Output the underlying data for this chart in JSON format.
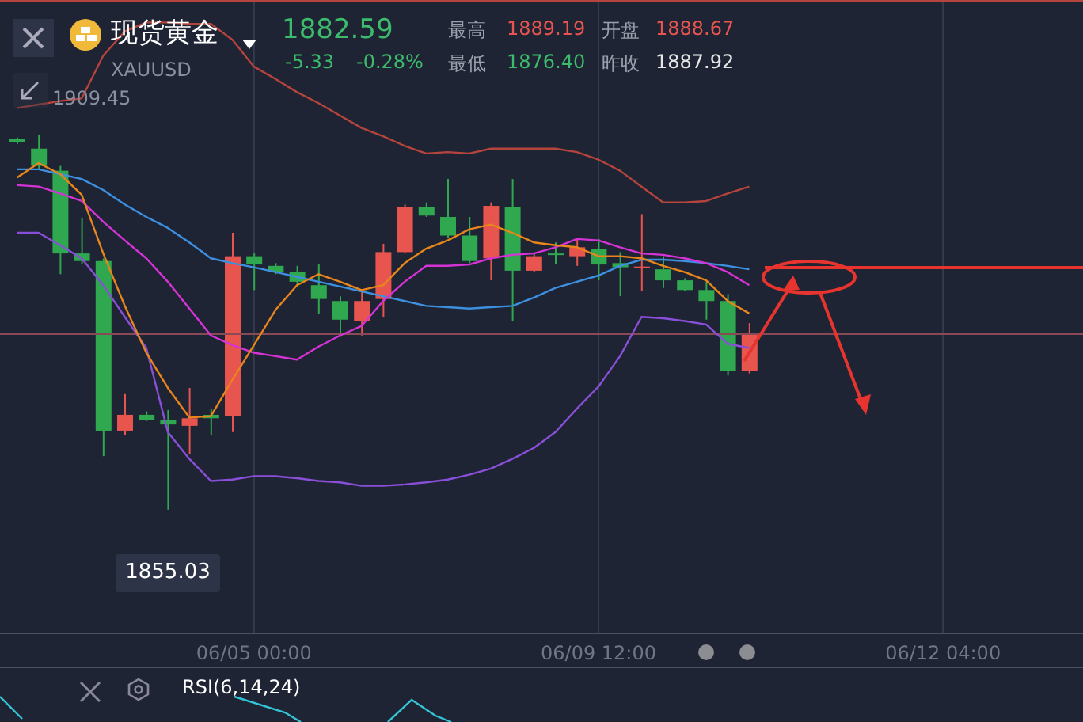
{
  "chart_data": {
    "type": "candlestick",
    "title": "现货黄金",
    "subtitle": "XAUUSD",
    "categories": [
      null,
      null,
      null,
      null,
      null,
      null,
      null,
      null,
      null,
      null,
      null,
      "06/05 00:00",
      null,
      null,
      null,
      null,
      null,
      null,
      null,
      null,
      null,
      null,
      null,
      null,
      null,
      null,
      null,
      "06/09 12:00",
      null,
      null,
      null,
      null,
      null,
      null,
      null,
      null,
      null,
      null,
      null,
      null,
      null,
      null,
      null,
      "06/12 04:00",
      null,
      null,
      null,
      null,
      null,
      null
    ],
    "ohlc": [
      [
        1908.8,
        1909.0,
        1908.1,
        1908.3
      ],
      [
        1907.4,
        1909.45,
        1904.4,
        1904.9
      ],
      [
        1904.2,
        1904.9,
        1889.2,
        1892.2
      ],
      [
        1892.2,
        1897.3,
        1890.6,
        1891.1
      ],
      [
        1891.1,
        1891.5,
        1862.8,
        1866.5
      ],
      [
        1866.5,
        1871.8,
        1865.8,
        1868.8
      ],
      [
        1868.8,
        1869.3,
        1867.9,
        1868.1
      ],
      [
        1868.1,
        1869.5,
        1855.03,
        1867.4
      ],
      [
        1867.2,
        1872.7,
        1863.1,
        1868.3
      ],
      [
        1868.8,
        1869.7,
        1865.8,
        1868.3
      ],
      [
        1868.6,
        1895.2,
        1866.3,
        1891.8
      ],
      [
        1891.8,
        1892.2,
        1886.9,
        1890.6
      ],
      [
        1890.4,
        1890.8,
        1889.2,
        1889.5
      ],
      [
        1889.5,
        1890.4,
        1887.6,
        1888.1
      ],
      [
        1887.6,
        1890.6,
        1883.5,
        1885.6
      ],
      [
        1885.3,
        1886.0,
        1880.1,
        1882.6
      ],
      [
        1882.4,
        1886.9,
        1880.3,
        1885.3
      ],
      [
        1885.6,
        1893.6,
        1883.0,
        1892.4
      ],
      [
        1892.4,
        1899.3,
        1892.2,
        1898.9
      ],
      [
        1898.9,
        1899.6,
        1897.5,
        1897.7
      ],
      [
        1897.5,
        1903.0,
        1894.5,
        1894.8
      ],
      [
        1894.8,
        1897.5,
        1890.8,
        1891.1
      ],
      [
        1891.5,
        1899.6,
        1888.3,
        1899.1
      ],
      [
        1898.9,
        1903.0,
        1882.4,
        1889.7
      ],
      [
        1889.7,
        1892.2,
        1889.5,
        1891.8
      ],
      [
        1892.2,
        1893.8,
        1890.6,
        1892.0
      ],
      [
        1891.8,
        1894.5,
        1890.4,
        1893.1
      ],
      [
        1892.9,
        1894.3,
        1888.3,
        1890.6
      ],
      [
        1890.8,
        1892.4,
        1886.0,
        1890.2
      ],
      [
        1890.2,
        1897.9,
        1886.7,
        1890.3
      ],
      [
        1889.9,
        1891.8,
        1887.2,
        1888.3
      ],
      [
        1888.3,
        1888.6,
        1886.7,
        1886.9
      ],
      [
        1886.9,
        1888.1,
        1882.6,
        1885.3
      ],
      [
        1885.3,
        1886.3,
        1874.5,
        1875.2
      ],
      [
        1875.2,
        1882.1,
        1874.8,
        1880.5
      ],
      null,
      null,
      null,
      null,
      null,
      null,
      null,
      null,
      null,
      null,
      null,
      null,
      null,
      null,
      null
    ],
    "colors": [
      "#2fa84f",
      "#2fa84f",
      "#2fa84f",
      "#2fa84f",
      "#2fa84f",
      "#e8554e",
      "#2fa84f",
      "#2fa84f",
      "#e8554e",
      "#2fa84f",
      "#e8554e",
      "#2fa84f",
      "#2fa84f",
      "#2fa84f",
      "#2fa84f",
      "#2fa84f",
      "#e8554e",
      "#e8554e",
      "#e8554e",
      "#2fa84f",
      "#2fa84f",
      "#2fa84f",
      "#e8554e",
      "#2fa84f",
      "#e8554e",
      "#2fa84f",
      "#e8554e",
      "#2fa84f",
      "#2fa84f",
      "#e8554e",
      "#2fa84f",
      "#2fa84f",
      "#2fa84f",
      "#2fa84f",
      "#e8554e",
      null,
      null,
      null,
      null,
      null,
      null,
      null,
      null,
      null,
      null,
      null,
      null,
      null,
      null,
      null
    ],
    "series": [
      {
        "type": "line",
        "color": "#b5443c",
        "values": [
          1913.3,
          1913.8,
          1914.3,
          1914.7,
          1920.9,
          1924.4,
          1925.7,
          1925.7,
          1925.5,
          1925.5,
          1923.2,
          1919.3,
          1917.5,
          1915.6,
          1914.0,
          1912.2,
          1910.4,
          1909.2,
          1907.8,
          1906.7,
          1906.9,
          1906.7,
          1907.4,
          1907.4,
          1907.4,
          1907.4,
          1906.9,
          1905.8,
          1904.2,
          1901.9,
          1899.6,
          1899.6,
          1899.8,
          1900.9,
          1901.9,
          null,
          null,
          null,
          null,
          null,
          null,
          null,
          null,
          null,
          null,
          null,
          null,
          null,
          null,
          null
        ]
      },
      {
        "type": "line",
        "color": "#8a4fd8",
        "values": [
          1895.2,
          1895.2,
          1893.4,
          1891.5,
          1887.6,
          1883.0,
          1878.5,
          1866.3,
          1862.4,
          1859.2,
          1859.4,
          1859.9,
          1859.9,
          1859.6,
          1859.2,
          1859.0,
          1858.5,
          1858.5,
          1858.7,
          1859.0,
          1859.4,
          1860.1,
          1861.0,
          1862.4,
          1864.0,
          1866.3,
          1869.7,
          1872.9,
          1877.3,
          1883.0,
          1882.8,
          1882.4,
          1881.9,
          1879.1,
          1878.5,
          null,
          null,
          null,
          null,
          null,
          null,
          null,
          null,
          null,
          null,
          null,
          null,
          null,
          null,
          null
        ]
      },
      {
        "type": "line",
        "color": "#3d8fe0",
        "values": [
          1904.4,
          1904.4,
          1903.7,
          1903.0,
          1901.4,
          1899.3,
          1897.5,
          1895.9,
          1893.8,
          1891.5,
          1890.8,
          1890.2,
          1889.5,
          1888.8,
          1888.1,
          1887.4,
          1886.7,
          1886.0,
          1885.3,
          1884.6,
          1884.4,
          1884.2,
          1884.4,
          1884.6,
          1885.8,
          1887.2,
          1888.1,
          1889.0,
          1890.4,
          1891.3,
          1891.3,
          1891.1,
          1890.8,
          1890.4,
          1889.9,
          null,
          null,
          null,
          null,
          null,
          null,
          null,
          null,
          null,
          null,
          null,
          null,
          null,
          null,
          null
        ]
      },
      {
        "type": "line",
        "color": "#d633d6",
        "values": [
          1902.1,
          1901.9,
          1900.9,
          1899.8,
          1896.8,
          1894.1,
          1891.5,
          1888.1,
          1884.2,
          1880.3,
          1878.9,
          1877.8,
          1877.3,
          1876.8,
          1878.7,
          1880.3,
          1881.7,
          1885.3,
          1888.1,
          1890.4,
          1890.4,
          1890.6,
          1891.5,
          1892.0,
          1892.2,
          1893.1,
          1894.3,
          1894.1,
          1893.1,
          1892.2,
          1892.0,
          1891.5,
          1890.8,
          1889.5,
          1887.6,
          null,
          null,
          null,
          null,
          null,
          null,
          null,
          null,
          null,
          null,
          null,
          null,
          null,
          null,
          null
        ]
      },
      {
        "type": "line",
        "color": "#e8861c",
        "values": [
          1903.2,
          1905.3,
          1903.7,
          1900.7,
          1892.2,
          1884.6,
          1877.8,
          1872.7,
          1868.4,
          1868.6,
          1873.9,
          1878.9,
          1884.0,
          1887.6,
          1889.2,
          1888.1,
          1886.9,
          1887.6,
          1890.8,
          1892.9,
          1894.1,
          1895.7,
          1896.4,
          1895.2,
          1893.8,
          1893.4,
          1893.1,
          1891.8,
          1891.8,
          1891.5,
          1890.4,
          1889.5,
          1888.3,
          1885.3,
          1883.5,
          null,
          null,
          null,
          null,
          null,
          null,
          null,
          null,
          null,
          null,
          null,
          null,
          null,
          null,
          null
        ]
      }
    ],
    "ylim": [
      1837.1,
      1928.96
    ],
    "tick_labels": "x",
    "grid": "x",
    "ref_lines": [
      {
        "axis": "y",
        "value": 1880.5,
        "color": "#8a4a55"
      }
    ],
    "annotations": [
      "1882.59",
      "-5.33",
      "-0.28%",
      "最高",
      "1889.19",
      "开盘",
      "1888.67",
      "最低",
      "1876.40",
      "昨收",
      "1887.92",
      "1909.45",
      {
        "text": "1855.03",
        "y": 1855.03
      },
      "RSI(6,14,24)"
    ]
  }
}
